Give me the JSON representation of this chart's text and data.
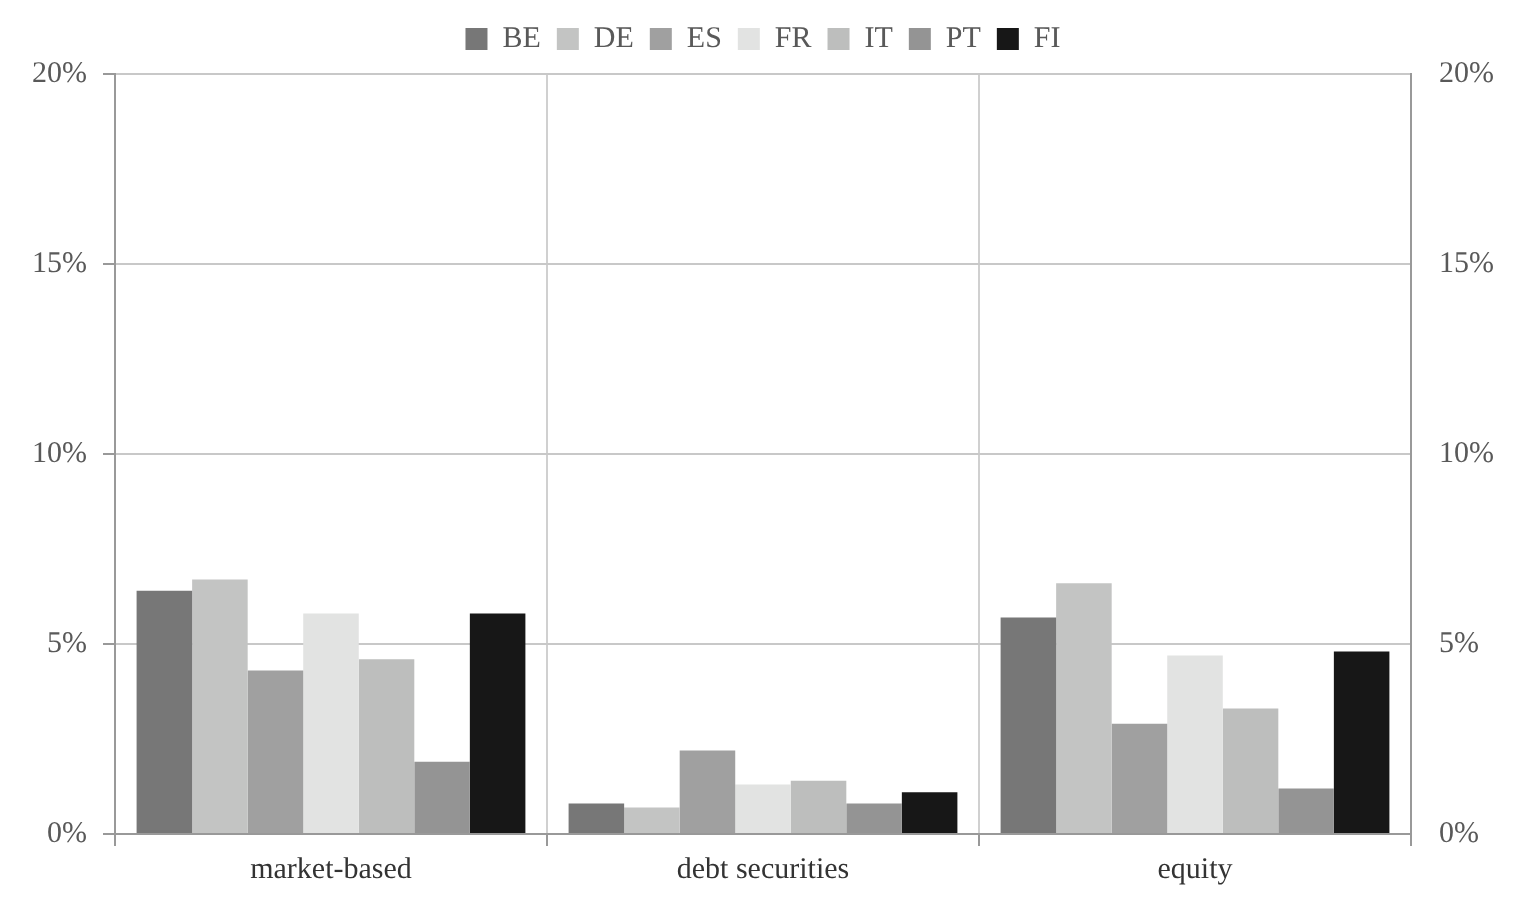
{
  "chart_data": {
    "type": "bar",
    "categories": [
      "market-based",
      "debt securities",
      "equity"
    ],
    "series": [
      {
        "name": "BE",
        "color": "#777777",
        "values": [
          6.4,
          0.8,
          5.7
        ]
      },
      {
        "name": "DE",
        "color": "#c3c4c3",
        "values": [
          6.7,
          0.7,
          6.6
        ]
      },
      {
        "name": "ES",
        "color": "#a0a0a0",
        "values": [
          4.3,
          2.2,
          2.9
        ]
      },
      {
        "name": "FR",
        "color": "#e2e3e2",
        "values": [
          5.8,
          1.3,
          4.7
        ]
      },
      {
        "name": "IT",
        "color": "#bdbebd",
        "values": [
          4.6,
          1.4,
          3.3
        ]
      },
      {
        "name": "PT",
        "color": "#949494",
        "values": [
          1.9,
          0.8,
          1.2
        ]
      },
      {
        "name": "FI",
        "color": "#171717",
        "values": [
          5.8,
          1.1,
          4.8
        ]
      }
    ],
    "ylim": [
      0,
      20
    ],
    "yticks": [
      {
        "value": 0,
        "label": "0%"
      },
      {
        "value": 5,
        "label": "5%"
      },
      {
        "value": 10,
        "label": "10%"
      },
      {
        "value": 15,
        "label": "15%"
      },
      {
        "value": 20,
        "label": "20%"
      }
    ],
    "y2lim": [
      0,
      20
    ],
    "y2ticks": [
      {
        "value": 0,
        "label": "0%"
      },
      {
        "value": 5,
        "label": "5%"
      },
      {
        "value": 10,
        "label": "10%"
      },
      {
        "value": 15,
        "label": "15%"
      },
      {
        "value": 20,
        "label": "20%"
      }
    ],
    "grid": true,
    "legend": "top"
  }
}
